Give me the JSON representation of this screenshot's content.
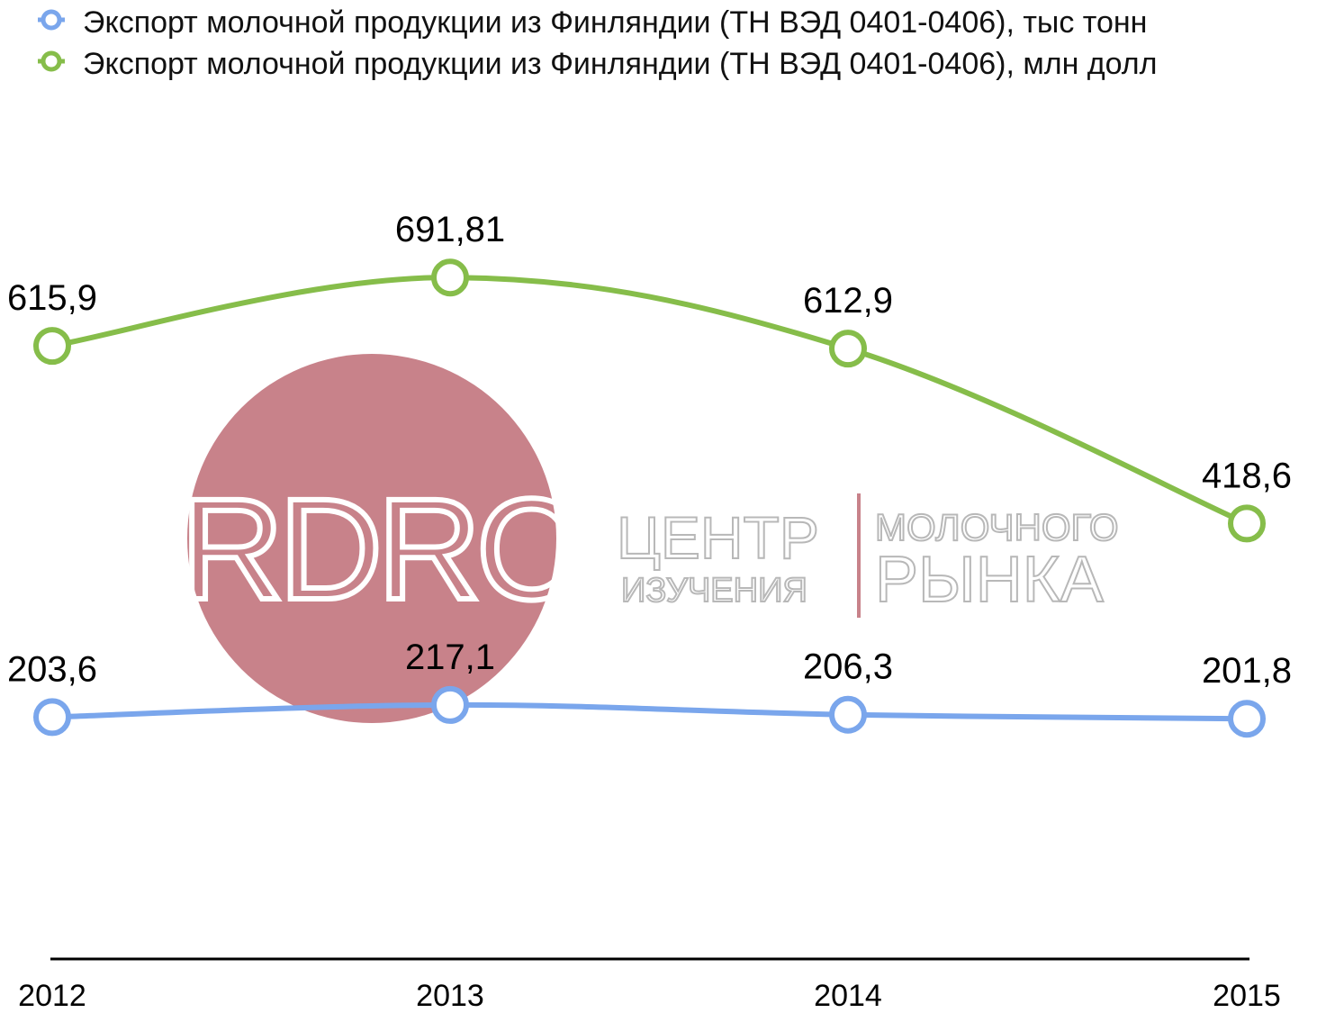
{
  "chart_data": {
    "type": "line",
    "categories": [
      "2012",
      "2013",
      "2014",
      "2015"
    ],
    "series": [
      {
        "name": "Экспорт молочной продукции из Финляндии (ТН ВЭД 0401-0406), тыс тонн",
        "values": [
          203.6,
          217.1,
          206.3,
          201.8
        ],
        "labels": [
          "203,6",
          "217,1",
          "206,3",
          "201,8"
        ],
        "color": "#7aa6ec"
      },
      {
        "name": "Экспорт молочной продукции из Финляндии (ТН ВЭД 0401-0406), млн долл",
        "values": [
          615.9,
          691.81,
          612.9,
          418.6
        ],
        "labels": [
          "615,9",
          "691,81",
          "612,9",
          "418,6"
        ],
        "color": "#86bd4a"
      }
    ],
    "legend_position": "top",
    "grid": false,
    "ylim": [
      0,
      735
    ]
  },
  "watermark": {
    "logo": "RDRC",
    "brand_line1_left": "ЦЕНТР",
    "brand_line2_left": "ИЗУЧЕНИЯ",
    "brand_line1_right": "МОЛОЧНОГО",
    "brand_line2_right": "РЫНКА",
    "circle_color": "#c8828a"
  }
}
